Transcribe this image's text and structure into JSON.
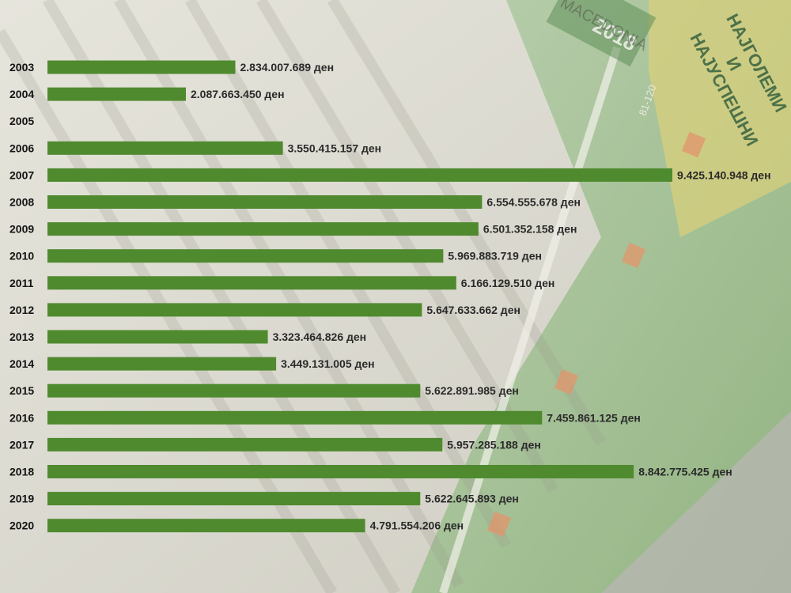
{
  "chart_data": {
    "type": "bar",
    "orientation": "horizontal",
    "categories": [
      "2003",
      "2004",
      "2005",
      "2006",
      "2007",
      "2008",
      "2009",
      "2010",
      "2011",
      "2012",
      "2013",
      "2014",
      "2015",
      "2016",
      "2017",
      "2018",
      "2019",
      "2020"
    ],
    "values": [
      2834007689,
      2087663450,
      null,
      3550415157,
      9425140948,
      6554555678,
      6501352158,
      5969883719,
      6166129510,
      5647633662,
      3323464826,
      3449131005,
      5622891985,
      7459861125,
      5957285188,
      8842775425,
      5622645893,
      4791554206
    ],
    "value_labels": [
      "2.834.007.689 ден",
      "2.087.663.450 ден",
      "",
      "3.550.415.157 ден",
      "9.425.140.948 ден",
      "6.554.555.678 ден",
      "6.501.352.158 ден",
      "5.969.883.719 ден",
      "6.166.129.510 ден",
      "5.647.633.662 ден",
      "3.323.464.826 ден",
      "3.449.131.005 ден",
      "5.622.891.985 ден",
      "7.459.861.125 ден",
      "5.957.285.188 ден",
      "8.842.775.425 ден",
      "5.622.645.893 ден",
      "4.791.554.206 ден"
    ],
    "title": "",
    "xlabel": "",
    "ylabel": "",
    "xlim": [
      0,
      9425140948
    ],
    "grid": false,
    "legend": "none",
    "bar_color": "#4f8a2f"
  },
  "background": {
    "magazine_cover_text": [
      "НАЈГОЛЕМИ",
      "И",
      "НАЈУСПЕШНИ"
    ],
    "magazine_year": "2018",
    "magazine_word": "MACEDONIA",
    "magazine_range": "81-120"
  },
  "colors": {
    "bar": "#4f8a2f",
    "year_text": "#141414",
    "value_text": "#2a2a2a"
  }
}
